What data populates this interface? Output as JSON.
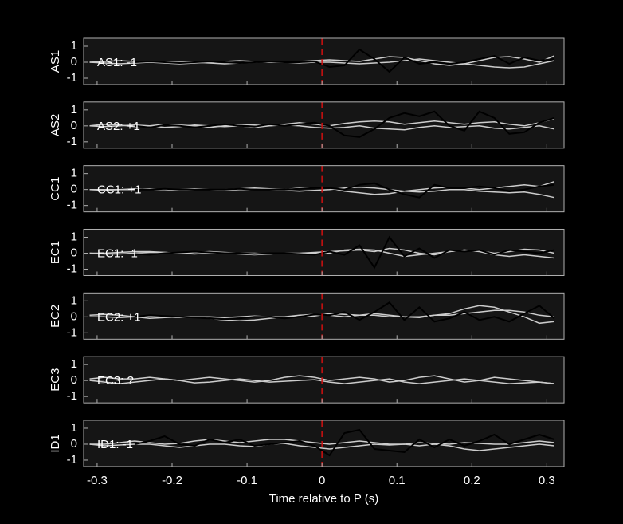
{
  "chart_data": [
    {
      "type": "line",
      "ylabel": "AS1",
      "annotation": {
        "text": "AS1: -1",
        "color": "#1f1fa0"
      },
      "vline": {
        "value": 0,
        "color": "#d01010"
      },
      "x": [
        -0.31,
        -0.29,
        -0.27,
        -0.25,
        -0.23,
        -0.21,
        -0.19,
        -0.17,
        -0.15,
        -0.13,
        -0.11,
        -0.09,
        -0.07,
        -0.05,
        -0.03,
        -0.01,
        0.01,
        0.03,
        0.05,
        0.07,
        0.09,
        0.11,
        0.13,
        0.15,
        0.17,
        0.19,
        0.21,
        0.23,
        0.25,
        0.27,
        0.29,
        0.31
      ],
      "xlim": [
        -0.318,
        0.323
      ],
      "xticks": [
        -0.3,
        -0.2,
        -0.1,
        0,
        0.1,
        0.2,
        0.3
      ],
      "ylim": [
        -1.4,
        1.5
      ],
      "yticks": [
        -1,
        0,
        1
      ],
      "series": [
        {
          "color": "#cccccc",
          "values": [
            0,
            0.05,
            0.1,
            0.05,
            0,
            -0.05,
            -0.1,
            -0.05,
            0,
            0.05,
            0.1,
            0.05,
            0,
            0,
            0.05,
            0.1,
            0.15,
            0.1,
            0.05,
            0.2,
            0.35,
            0.3,
            0.1,
            -0.1,
            -0.2,
            -0.1,
            0.1,
            0.3,
            0.35,
            0.2,
            0,
            0.4
          ]
        },
        {
          "color": "#cccccc",
          "values": [
            0,
            -0.05,
            -0.1,
            -0.05,
            0,
            0.05,
            0.05,
            0,
            -0.05,
            -0.1,
            -0.05,
            0,
            0.05,
            0,
            -0.05,
            0,
            0,
            -0.05,
            -0.1,
            -0.05,
            0,
            0.1,
            0.2,
            0.1,
            0,
            -0.1,
            -0.2,
            -0.3,
            -0.35,
            -0.3,
            -0.1,
            0.1
          ]
        },
        {
          "color": "#000000",
          "values": [
            null,
            null,
            null,
            0,
            0.05,
            0,
            -0.05,
            0,
            0.05,
            0,
            -0.05,
            0,
            0.05,
            0,
            0,
            0.05,
            -0.3,
            -0.2,
            0.8,
            0.2,
            -0.6,
            0.3,
            -0.1,
            0,
            -0.1,
            0,
            0.2,
            0.4,
            -0.1,
            0.3,
            0.1,
            0.2
          ]
        }
      ]
    },
    {
      "type": "line",
      "ylabel": "AS2",
      "annotation": {
        "text": "AS2: +1",
        "color": "#c01818"
      },
      "vline": {
        "value": 0,
        "color": "#d01010"
      },
      "x": [
        -0.31,
        -0.29,
        -0.27,
        -0.25,
        -0.23,
        -0.21,
        -0.19,
        -0.17,
        -0.15,
        -0.13,
        -0.11,
        -0.09,
        -0.07,
        -0.05,
        -0.03,
        -0.01,
        0.01,
        0.03,
        0.05,
        0.07,
        0.09,
        0.11,
        0.13,
        0.15,
        0.17,
        0.19,
        0.21,
        0.23,
        0.25,
        0.27,
        0.29,
        0.31
      ],
      "xlim": [
        -0.318,
        0.323
      ],
      "xticks": [
        -0.3,
        -0.2,
        -0.1,
        0,
        0.1,
        0.2,
        0.3
      ],
      "ylim": [
        -1.4,
        1.5
      ],
      "yticks": [
        -1,
        0,
        1
      ],
      "series": [
        {
          "color": "#cccccc",
          "values": [
            0,
            0.1,
            0.05,
            -0.05,
            0,
            0.1,
            0.05,
            0,
            -0.1,
            0,
            0.1,
            0.05,
            0,
            0.1,
            0.2,
            0.1,
            0,
            0.15,
            0.25,
            0.3,
            0.25,
            0.1,
            0.2,
            0.3,
            0.2,
            0.1,
            0.2,
            0.25,
            0.1,
            0,
            0.2,
            0.45
          ]
        },
        {
          "color": "#cccccc",
          "values": [
            0,
            -0.05,
            0,
            0.05,
            0,
            -0.1,
            -0.05,
            0.05,
            0,
            -0.05,
            0,
            -0.1,
            0,
            0.05,
            0,
            -0.1,
            -0.15,
            -0.1,
            0,
            -0.15,
            -0.2,
            -0.25,
            -0.1,
            0,
            -0.1,
            -0.05,
            0,
            -0.15,
            -0.2,
            -0.1,
            0,
            -0.2
          ]
        },
        {
          "color": "#000000",
          "values": [
            null,
            null,
            null,
            0,
            -0.1,
            0.05,
            0,
            -0.1,
            0,
            0.1,
            0,
            -0.05,
            0.1,
            0,
            0.1,
            0.2,
            0,
            -0.6,
            -0.7,
            -0.2,
            0.5,
            0.8,
            0.6,
            0.9,
            0,
            -0.3,
            0.9,
            0.5,
            -0.5,
            -0.4,
            0.2,
            0.5
          ]
        }
      ]
    },
    {
      "type": "line",
      "ylabel": "CC1",
      "annotation": {
        "text": "CC1: +1",
        "color": "#c01818"
      },
      "vline": {
        "value": 0,
        "color": "#d01010"
      },
      "x": [
        -0.31,
        -0.29,
        -0.27,
        -0.25,
        -0.23,
        -0.21,
        -0.19,
        -0.17,
        -0.15,
        -0.13,
        -0.11,
        -0.09,
        -0.07,
        -0.05,
        -0.03,
        -0.01,
        0.01,
        0.03,
        0.05,
        0.07,
        0.09,
        0.11,
        0.13,
        0.15,
        0.17,
        0.19,
        0.21,
        0.23,
        0.25,
        0.27,
        0.29,
        0.31
      ],
      "xlim": [
        -0.318,
        0.323
      ],
      "xticks": [
        -0.3,
        -0.2,
        -0.1,
        0,
        0.1,
        0.2,
        0.3
      ],
      "ylim": [
        -1.4,
        1.5
      ],
      "yticks": [
        -1,
        0,
        1
      ],
      "series": [
        {
          "color": "#cccccc",
          "values": [
            0,
            0,
            0,
            0.05,
            0,
            0,
            -0.05,
            0,
            0,
            0,
            0.05,
            0.1,
            0.05,
            0,
            0.1,
            0.15,
            0.1,
            -0.1,
            -0.2,
            -0.3,
            -0.25,
            -0.1,
            0,
            0.1,
            0.15,
            0.1,
            0,
            0.1,
            0.2,
            0.3,
            0.2,
            0.5
          ]
        },
        {
          "color": "#cccccc",
          "values": [
            0,
            -0.05,
            0,
            0,
            0.05,
            0,
            0,
            0.05,
            0,
            -0.05,
            0,
            0,
            0,
            -0.05,
            -0.1,
            -0.05,
            0,
            0.1,
            0.15,
            0.1,
            0,
            -0.1,
            -0.15,
            -0.1,
            0,
            0,
            -0.1,
            -0.15,
            -0.2,
            -0.15,
            -0.3,
            -0.5
          ]
        },
        {
          "color": "#000000",
          "values": [
            null,
            null,
            null,
            0,
            0,
            0.05,
            0,
            0,
            0,
            0,
            0.05,
            0,
            0,
            0,
            0.05,
            0.1,
            0.1,
            0,
            0.3,
            0.4,
            0,
            -0.3,
            -0.5,
            0.3,
            0.1,
            0.1,
            0.2,
            0.1,
            -0.1,
            0,
            0.2,
            0.3
          ]
        }
      ]
    },
    {
      "type": "line",
      "ylabel": "EC1",
      "annotation": {
        "text": "EC1: -1",
        "color": "#1f1fa0"
      },
      "vline": {
        "value": 0,
        "color": "#d01010"
      },
      "x": [
        -0.31,
        -0.29,
        -0.27,
        -0.25,
        -0.23,
        -0.21,
        -0.19,
        -0.17,
        -0.15,
        -0.13,
        -0.11,
        -0.09,
        -0.07,
        -0.05,
        -0.03,
        -0.01,
        0.01,
        0.03,
        0.05,
        0.07,
        0.09,
        0.11,
        0.13,
        0.15,
        0.17,
        0.19,
        0.21,
        0.23,
        0.25,
        0.27,
        0.29,
        0.31
      ],
      "xlim": [
        -0.318,
        0.323
      ],
      "xticks": [
        -0.3,
        -0.2,
        -0.1,
        0,
        0.1,
        0.2,
        0.3
      ],
      "ylim": [
        -1.4,
        1.5
      ],
      "yticks": [
        -1,
        0,
        1
      ],
      "series": [
        {
          "color": "#cccccc",
          "values": [
            0,
            0,
            0.05,
            0.1,
            0.1,
            0.05,
            0,
            0.05,
            0.1,
            0.05,
            0,
            0,
            -0.05,
            0,
            0,
            0.05,
            0.1,
            0.15,
            0.2,
            0.1,
            0.3,
            0.2,
            0,
            -0.1,
            0.1,
            0.2,
            0.1,
            -0.1,
            -0.2,
            -0.1,
            -0.2,
            -0.3
          ]
        },
        {
          "color": "#cccccc",
          "values": [
            0,
            -0.05,
            -0.05,
            0,
            0.05,
            0.05,
            0,
            -0.05,
            0,
            0,
            -0.05,
            -0.1,
            -0.05,
            0,
            -0.05,
            0,
            0,
            0.2,
            0.25,
            0.2,
            0,
            -0.2,
            -0.1,
            0,
            0.1,
            0.2,
            0.15,
            0,
            0.1,
            0.25,
            0.2,
            0
          ]
        },
        {
          "color": "#000000",
          "values": [
            null,
            null,
            null,
            -0.05,
            -0.1,
            0,
            0.05,
            0.1,
            0.05,
            0,
            0,
            -0.05,
            0,
            0,
            -0.05,
            -0.1,
            0.1,
            -0.1,
            0.5,
            -0.9,
            1.0,
            -0.2,
            0.3,
            -0.3,
            0.2,
            0.1,
            0.2,
            -0.1,
            0.2,
            0.1,
            0,
            0.2
          ]
        }
      ]
    },
    {
      "type": "line",
      "ylabel": "EC2",
      "annotation": {
        "text": "EC2: +1",
        "color": "#c01818"
      },
      "vline": {
        "value": 0,
        "color": "#d01010"
      },
      "x": [
        -0.31,
        -0.29,
        -0.27,
        -0.25,
        -0.23,
        -0.21,
        -0.19,
        -0.17,
        -0.15,
        -0.13,
        -0.11,
        -0.09,
        -0.07,
        -0.05,
        -0.03,
        -0.01,
        0.01,
        0.03,
        0.05,
        0.07,
        0.09,
        0.11,
        0.13,
        0.15,
        0.17,
        0.19,
        0.21,
        0.23,
        0.25,
        0.27,
        0.29,
        0.31
      ],
      "xlim": [
        -0.318,
        0.323
      ],
      "xticks": [
        -0.3,
        -0.2,
        -0.1,
        0,
        0.1,
        0.2,
        0.3
      ],
      "ylim": [
        -1.4,
        1.5
      ],
      "yticks": [
        -1,
        0,
        1
      ],
      "series": [
        {
          "color": "#cccccc",
          "values": [
            0.1,
            0.15,
            0.1,
            0,
            -0.1,
            -0.05,
            0,
            0,
            -0.1,
            -0.2,
            -0.25,
            -0.2,
            -0.1,
            0,
            0.1,
            0.15,
            0.1,
            0,
            0.1,
            0.1,
            0,
            0,
            0,
            0.1,
            0.2,
            0.5,
            0.7,
            0.6,
            0.3,
            0,
            -0.4,
            -0.3
          ]
        },
        {
          "color": "#cccccc",
          "values": [
            0,
            0,
            -0.05,
            0,
            0.05,
            0,
            -0.05,
            0,
            0,
            -0.05,
            0,
            0.05,
            0,
            0,
            0,
            0.05,
            0.2,
            0.15,
            0.1,
            0.2,
            0.1,
            0,
            -0.05,
            0.1,
            0.1,
            0.2,
            0.3,
            0.4,
            0.4,
            0.3,
            0.1,
            0
          ]
        },
        {
          "color": "#000000",
          "values": [
            null,
            null,
            null,
            0,
            0.1,
            0.05,
            0,
            -0.05,
            -0.1,
            -0.15,
            -0.1,
            0,
            0,
            -0.1,
            0,
            0.15,
            0.1,
            0.3,
            -0.2,
            0.3,
            0.9,
            -0.2,
            0.6,
            -0.3,
            -0.1,
            0.3,
            -0.2,
            0,
            -0.3,
            0.2,
            0.7,
            -0.1
          ]
        }
      ]
    },
    {
      "type": "line",
      "ylabel": "EC3",
      "annotation": {
        "text": "EC3: ?",
        "color": "#909090"
      },
      "vline": {
        "value": 0,
        "color": "#d01010"
      },
      "x": [
        -0.31,
        -0.29,
        -0.27,
        -0.25,
        -0.23,
        -0.21,
        -0.19,
        -0.17,
        -0.15,
        -0.13,
        -0.11,
        -0.09,
        -0.07,
        -0.05,
        -0.03,
        -0.01,
        0.01,
        0.03,
        0.05,
        0.07,
        0.09,
        0.11,
        0.13,
        0.15,
        0.17,
        0.19,
        0.21,
        0.23,
        0.25,
        0.27,
        0.29,
        0.31
      ],
      "xlim": [
        -0.318,
        0.323
      ],
      "xticks": [
        -0.3,
        -0.2,
        -0.1,
        0,
        0.1,
        0.2,
        0.3
      ],
      "ylim": [
        -1.4,
        1.5
      ],
      "yticks": [
        -1,
        0,
        1
      ],
      "series": [
        {
          "color": "#cccccc",
          "values": [
            0.1,
            0.2,
            0.1,
            0.1,
            0.2,
            0.1,
            0,
            0.1,
            0.2,
            0.1,
            0,
            -0.1,
            0,
            0.2,
            0.3,
            0.2,
            0,
            0.1,
            0.2,
            0.1,
            -0.1,
            0,
            0.2,
            0.3,
            0.1,
            -0.1,
            0,
            0.2,
            0.1,
            0,
            -0.1,
            -0.2
          ]
        },
        {
          "color": "#cccccc",
          "values": [
            0,
            -0.1,
            -0.2,
            -0.1,
            0,
            0.1,
            0,
            -0.15,
            -0.1,
            0,
            0.1,
            0,
            -0.1,
            -0.05,
            0,
            0.05,
            -0.1,
            -0.2,
            -0.1,
            0,
            0.1,
            -0.1,
            -0.2,
            -0.1,
            0,
            0.1,
            0,
            -0.1,
            -0.2,
            -0.15,
            -0.1,
            -0.2
          ]
        }
      ]
    },
    {
      "type": "line",
      "ylabel": "ID1",
      "annotation": {
        "text": "ID1: -1",
        "color": "#1f1fa0"
      },
      "vline": {
        "value": 0,
        "color": "#d01010"
      },
      "x": [
        -0.31,
        -0.29,
        -0.27,
        -0.25,
        -0.23,
        -0.21,
        -0.19,
        -0.17,
        -0.15,
        -0.13,
        -0.11,
        -0.09,
        -0.07,
        -0.05,
        -0.03,
        -0.01,
        0.01,
        0.03,
        0.05,
        0.07,
        0.09,
        0.11,
        0.13,
        0.15,
        0.17,
        0.19,
        0.21,
        0.23,
        0.25,
        0.27,
        0.29,
        0.31
      ],
      "xlim": [
        -0.318,
        0.323
      ],
      "xticks": [
        -0.3,
        -0.2,
        -0.1,
        0,
        0.1,
        0.2,
        0.3
      ],
      "ylim": [
        -1.4,
        1.5
      ],
      "yticks": [
        -1,
        0,
        1
      ],
      "xlabel": "Time relative to P (s)",
      "series": [
        {
          "color": "#cccccc",
          "values": [
            0,
            0,
            0.1,
            0.2,
            0.1,
            0,
            0.05,
            0.2,
            0.3,
            0.2,
            0.1,
            0.2,
            0.3,
            0.3,
            0.2,
            0.1,
            0,
            0.1,
            0.2,
            0.1,
            0,
            0,
            0.1,
            0.05,
            0,
            0.1,
            0.05,
            0,
            0,
            0.1,
            0.2,
            0.1
          ]
        },
        {
          "color": "#cccccc",
          "values": [
            0,
            -0.1,
            -0.05,
            0,
            0,
            -0.1,
            -0.2,
            -0.1,
            0,
            0,
            -0.1,
            -0.15,
            0,
            0.05,
            -0.1,
            -0.2,
            -0.3,
            -0.2,
            -0.1,
            0,
            -0.05,
            0,
            -0.1,
            0,
            -0.1,
            -0.3,
            -0.4,
            -0.3,
            -0.2,
            -0.1,
            0,
            -0.1
          ]
        },
        {
          "color": "#000000",
          "values": [
            null,
            null,
            null,
            0,
            0.2,
            0.5,
            0,
            -0.1,
            0.3,
            0.1,
            0.3,
            -0.1,
            0,
            0.1,
            0.2,
            -0.1,
            -0.7,
            0.7,
            0.9,
            -0.3,
            -0.4,
            -0.5,
            0.3,
            -0.2,
            0.3,
            -0.1,
            0.2,
            0.6,
            0,
            0.3,
            0.6,
            0.3
          ]
        }
      ]
    }
  ]
}
